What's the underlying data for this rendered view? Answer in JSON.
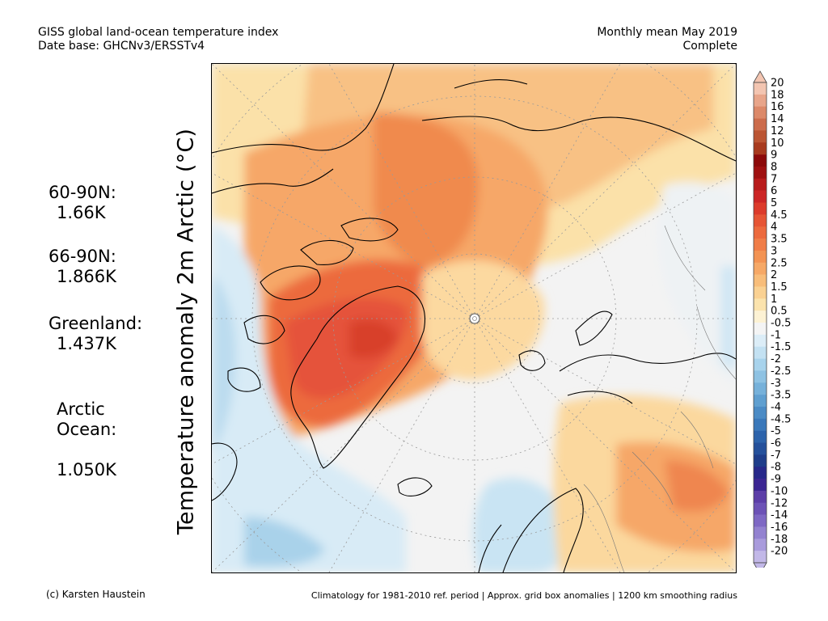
{
  "header": {
    "title_line1": "GISS global land-ocean temperature index",
    "title_line2": "Date base: GHCNv3/ERSSTv4",
    "period_line1": "Monthly mean May 2019",
    "period_line2": "Complete"
  },
  "y_axis_label": "Temperature anomaly 2m Arctic (°C)",
  "stats": [
    {
      "label": "60-90N:",
      "value": "1.66K"
    },
    {
      "label": "66-90N:",
      "value": "1.866K"
    },
    {
      "label": "Greenland:",
      "value": "1.437K"
    },
    {
      "label": "Arctic\nOcean:",
      "value": "1.050K"
    }
  ],
  "colorbar": {
    "labels": [
      "20",
      "18",
      "16",
      "14",
      "12",
      "10",
      "9",
      "8",
      "7",
      "6",
      "5",
      "4.5",
      "4",
      "3.5",
      "3",
      "2.5",
      "2",
      "1.5",
      "1",
      "0.5",
      "-0.5",
      "-1",
      "-1.5",
      "-2",
      "-2.5",
      "-3",
      "-3.5",
      "-4",
      "-4.5",
      "-5",
      "-6",
      "-7",
      "-8",
      "-9",
      "-10",
      "-12",
      "-14",
      "-16",
      "-18",
      "-20"
    ],
    "colors": [
      "#f3c5b1",
      "#e8a58a",
      "#dc8969",
      "#cc6c4c",
      "#bb5533",
      "#a83a1e",
      "#8c0a0a",
      "#9f1111",
      "#b81c1c",
      "#cc2626",
      "#dc3b2b",
      "#e65535",
      "#ec6a3e",
      "#f07d48",
      "#f39353",
      "#f6a866",
      "#f8bd7a",
      "#fad192",
      "#fbe3ad",
      "#fdf2d4",
      "#f4f4f4",
      "#dcedf7",
      "#c3e1f2",
      "#a8d3ec",
      "#8ec2e3",
      "#76b1da",
      "#5f9fd0",
      "#4b8bc5",
      "#3a78ba",
      "#2c63ab",
      "#24509b",
      "#1e3d8a",
      "#27288a",
      "#3b2592",
      "#5c3ea8",
      "#6c52b6",
      "#7e68c4",
      "#9382d0",
      "#a99bdc",
      "#c2b8e8"
    ]
  },
  "map": {
    "ocean_neutral_color": "#f2f2f2",
    "north_pole_marker": "pole-marker"
  },
  "footer": {
    "credit": "(c) Karsten Haustein",
    "note": "Climatology for 1981-2010 ref. period | Approx. grid box anomalies | 1200 km smoothing radius"
  }
}
